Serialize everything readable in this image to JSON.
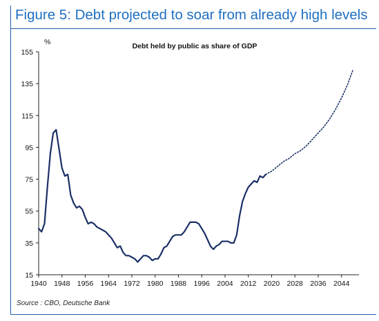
{
  "figure": {
    "title": "Figure 5: Debt projected to soar from already high levels",
    "source": "Source : CBO, Deutsche Bank"
  },
  "colors": {
    "accent": "#1f6fc0",
    "series": "#1a2f66"
  },
  "chart_data": {
    "type": "line",
    "title": "Debt held by public as share of GDP",
    "ylabel": "%",
    "xlabel": "",
    "ylim": [
      15,
      155
    ],
    "xlim": [
      1940,
      2050
    ],
    "yticks": [
      15,
      35,
      55,
      75,
      95,
      115,
      135,
      155
    ],
    "xticks": [
      1940,
      1948,
      1956,
      1964,
      1972,
      1980,
      1988,
      1996,
      2004,
      2012,
      2020,
      2028,
      2036,
      2044
    ],
    "grid": false,
    "series": [
      {
        "style": "solid",
        "x": [
          1940,
          1941,
          1942,
          1943,
          1944,
          1945,
          1946,
          1947,
          1948,
          1949,
          1950,
          1951,
          1952,
          1953,
          1954,
          1955,
          1956,
          1957,
          1958,
          1959,
          1960,
          1961,
          1962,
          1963,
          1964,
          1965,
          1966,
          1967,
          1968,
          1969,
          1970,
          1971,
          1972,
          1973,
          1974,
          1975,
          1976,
          1977,
          1978,
          1979,
          1980,
          1981,
          1982,
          1983,
          1984,
          1985,
          1986,
          1987,
          1988,
          1989,
          1990,
          1991,
          1992,
          1993,
          1994,
          1995,
          1996,
          1997,
          1998,
          1999,
          2000,
          2001,
          2002,
          2003,
          2004,
          2005,
          2006,
          2007,
          2008,
          2009,
          2010,
          2011,
          2012,
          2013,
          2014,
          2015,
          2016,
          2017,
          2018
        ],
        "values": [
          44,
          42,
          47,
          70,
          91,
          104,
          106,
          94,
          82,
          77,
          78,
          65,
          60,
          57,
          58,
          56,
          51,
          47,
          48,
          47,
          45,
          44,
          43,
          42,
          40,
          38,
          35,
          32,
          33,
          29,
          27,
          27,
          26,
          25,
          23,
          25,
          27,
          27,
          26,
          24,
          25,
          25,
          28,
          32,
          33,
          36,
          39,
          40,
          40,
          40,
          42,
          45,
          48,
          48,
          48,
          47,
          44,
          41,
          37,
          33,
          31,
          33,
          34,
          36,
          36,
          36,
          35,
          35,
          40,
          52,
          61,
          66,
          70,
          72,
          74,
          73,
          77,
          76,
          78
        ]
      },
      {
        "style": "dotted",
        "x": [
          2018,
          2020,
          2022,
          2024,
          2026,
          2028,
          2030,
          2032,
          2034,
          2036,
          2038,
          2040,
          2042,
          2044,
          2046,
          2048
        ],
        "values": [
          78,
          80,
          83,
          86,
          88,
          91,
          93,
          96,
          100,
          104,
          108,
          113,
          119,
          126,
          134,
          144
        ]
      }
    ]
  }
}
